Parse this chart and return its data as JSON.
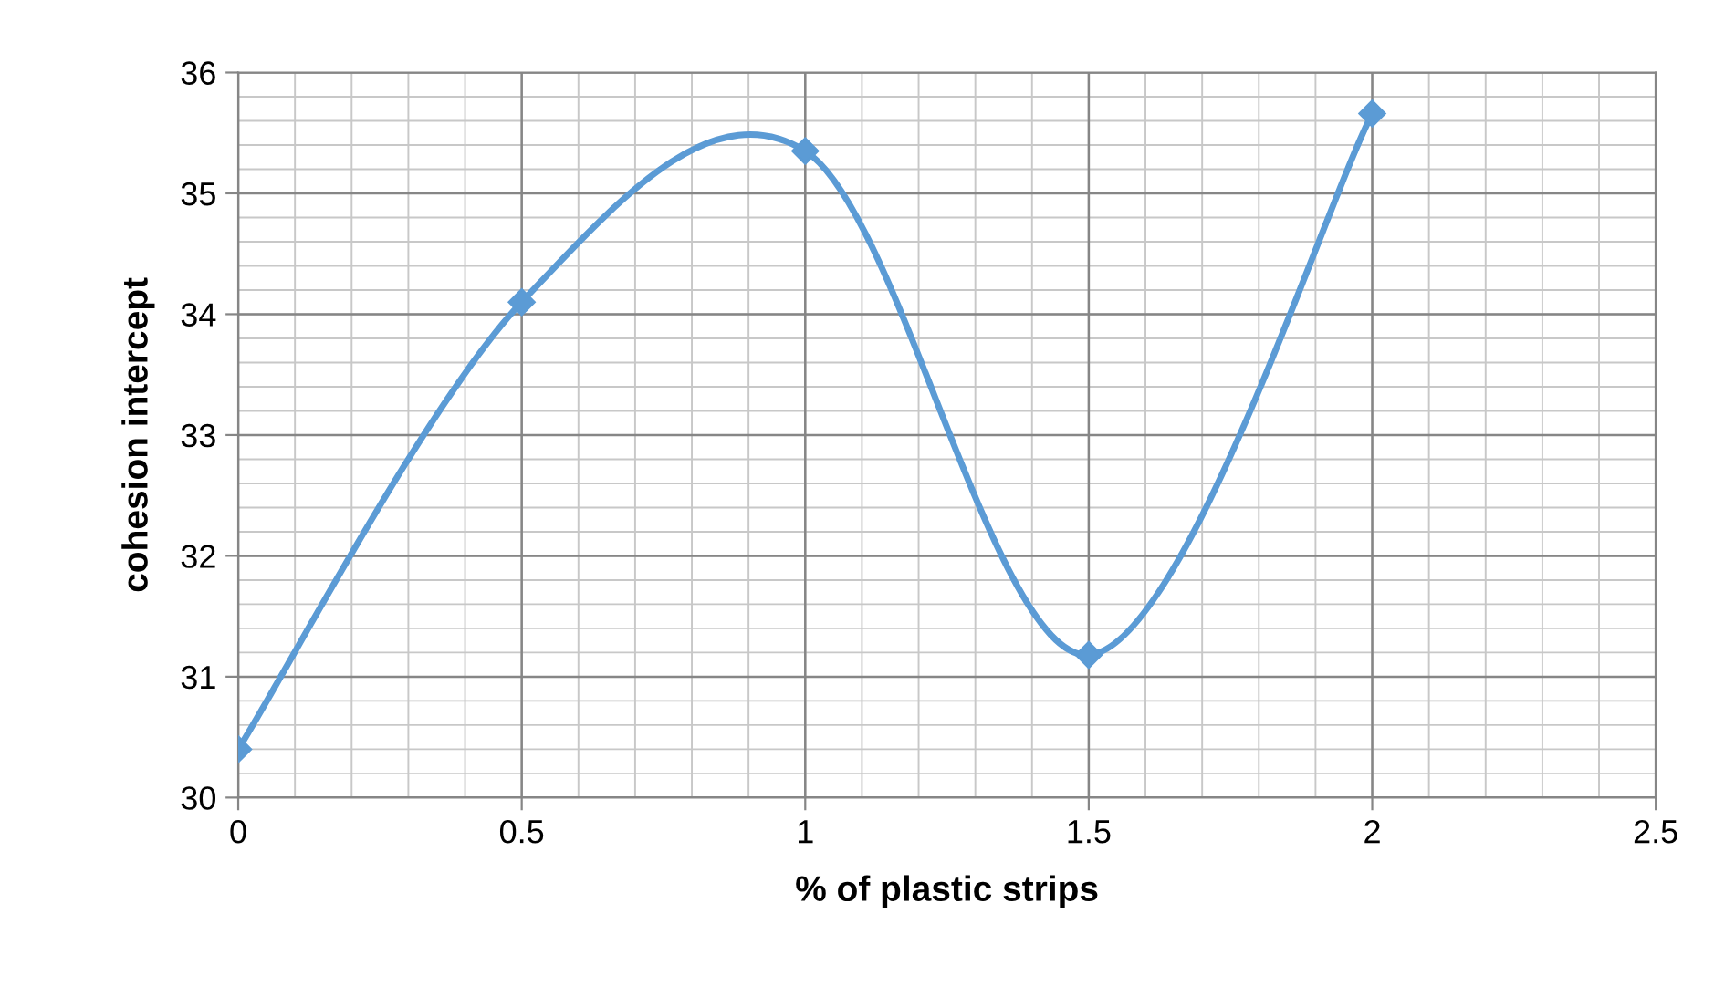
{
  "chart_data": {
    "type": "line",
    "xlabel": "% of plastic strips",
    "ylabel": "cohesion intercept",
    "x": [
      0,
      0.5,
      1,
      1.5,
      2
    ],
    "series": [
      {
        "color": "#5b9bd5",
        "values": [
          30.4,
          34.1,
          35.35,
          31.18,
          35.66
        ]
      }
    ],
    "xlim": [
      0,
      2.5
    ],
    "xticks": [
      0,
      0.5,
      1,
      1.5,
      2,
      2.5
    ],
    "ylim": [
      30,
      36
    ],
    "yticks": [
      30,
      31,
      32,
      33,
      34,
      35,
      36
    ],
    "grid": true,
    "marker": "diamond",
    "line_style": "solid",
    "legend": false
  }
}
